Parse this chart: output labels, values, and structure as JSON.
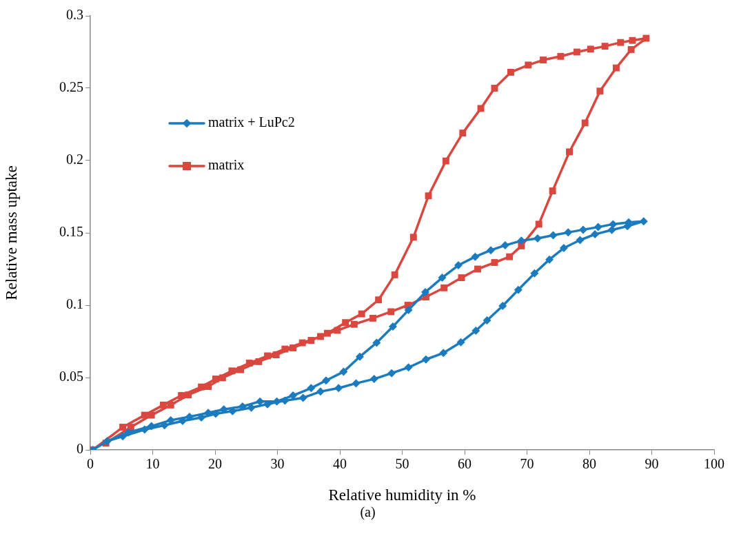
{
  "chart_data": {
    "type": "line",
    "xlabel": "Relative humidity in %",
    "ylabel": "Relative mass uptake",
    "annotations": [
      "(a)"
    ],
    "xlim": [
      0,
      100
    ],
    "xticks": [
      0,
      10,
      20,
      30,
      40,
      50,
      60,
      70,
      80,
      90,
      100
    ],
    "ylim": [
      0,
      0.3
    ],
    "yticks": [
      0,
      0.05,
      0.1,
      0.15,
      0.2,
      0.25,
      0.3
    ],
    "grid": false,
    "legend": "top left",
    "line_style": "solid",
    "series": [
      {
        "name": "matrix + LuPc2",
        "color": "#1a7bbf",
        "marker": "diamond",
        "x": [
          0.4,
          2.7,
          5.2,
          8.7,
          11.9,
          14.8,
          17.8,
          20.1,
          22.8,
          25.8,
          28.4,
          31.2,
          34.1,
          36.9,
          39.8,
          42.6,
          45.5,
          48.3,
          51.0,
          53.8,
          56.6,
          59.4,
          61.8,
          63.6,
          66.1,
          68.6,
          71.2,
          73.6,
          75.9,
          78.5,
          80.9,
          83.6,
          86.1,
          88.7,
          86.3,
          83.8,
          81.4,
          79.0,
          76.6,
          74.2,
          71.7,
          69.1,
          66.5,
          64.2,
          61.7,
          59.0,
          56.4,
          53.7,
          51.0,
          48.5,
          45.9,
          43.2,
          40.6,
          37.8,
          35.4,
          32.5,
          29.9,
          27.2,
          24.4,
          21.4,
          18.9,
          15.9,
          12.9,
          9.8,
          6.1,
          2.7
        ],
        "values": [
          0,
          0.006,
          0.0094,
          0.014,
          0.017,
          0.02,
          0.0224,
          0.025,
          0.0268,
          0.0292,
          0.0316,
          0.034,
          0.036,
          0.0403,
          0.0427,
          0.046,
          0.049,
          0.053,
          0.057,
          0.0625,
          0.067,
          0.0744,
          0.0824,
          0.0895,
          0.0995,
          0.1106,
          0.122,
          0.1316,
          0.1395,
          0.145,
          0.149,
          0.152,
          0.1546,
          0.158,
          0.1573,
          0.156,
          0.154,
          0.1522,
          0.1503,
          0.1483,
          0.1462,
          0.1446,
          0.1414,
          0.138,
          0.1335,
          0.1276,
          0.119,
          0.109,
          0.0967,
          0.0852,
          0.0741,
          0.0644,
          0.054,
          0.048,
          0.0427,
          0.0376,
          0.0335,
          0.0335,
          0.03,
          0.028,
          0.0256,
          0.0229,
          0.0205,
          0.0164,
          0.012,
          0.006
        ]
      },
      {
        "name": "matrix",
        "color": "#d9473f",
        "marker": "square",
        "x": [
          0.4,
          5.2,
          8.7,
          11.7,
          14.6,
          17.8,
          20.1,
          22.7,
          25.5,
          28.4,
          31.2,
          34.0,
          36.9,
          39.6,
          42.3,
          45.3,
          48.2,
          50.9,
          53.8,
          56.7,
          59.5,
          62.1,
          64.8,
          67.2,
          69.1,
          71.9,
          74.1,
          76.8,
          79.3,
          81.7,
          84.3,
          86.7,
          89.1,
          86.9,
          85.0,
          82.5,
          80.2,
          78.0,
          75.4,
          72.6,
          70.2,
          67.4,
          64.8,
          62.6,
          59.7,
          57.0,
          54.2,
          51.8,
          48.8,
          46.2,
          43.5,
          40.9,
          38.0,
          35.4,
          32.5,
          29.8,
          27.0,
          24.1,
          21.2,
          18.9,
          15.7,
          12.9,
          9.8,
          6.5,
          2.5
        ],
        "values": [
          0,
          0.0157,
          0.024,
          0.031,
          0.0376,
          0.0435,
          0.049,
          0.0546,
          0.06,
          0.065,
          0.0697,
          0.074,
          0.0784,
          0.0826,
          0.0868,
          0.091,
          0.0955,
          0.1,
          0.1057,
          0.112,
          0.119,
          0.125,
          0.1295,
          0.1335,
          0.141,
          0.156,
          0.179,
          0.206,
          0.226,
          0.248,
          0.264,
          0.2767,
          0.2845,
          0.283,
          0.2816,
          0.279,
          0.277,
          0.275,
          0.272,
          0.2695,
          0.266,
          0.261,
          0.25,
          0.236,
          0.219,
          0.1997,
          0.1756,
          0.147,
          0.121,
          0.1037,
          0.094,
          0.088,
          0.0806,
          0.0757,
          0.0705,
          0.0657,
          0.061,
          0.0554,
          0.0498,
          0.0438,
          0.038,
          0.031,
          0.024,
          0.0157,
          0.0046
        ]
      }
    ]
  }
}
